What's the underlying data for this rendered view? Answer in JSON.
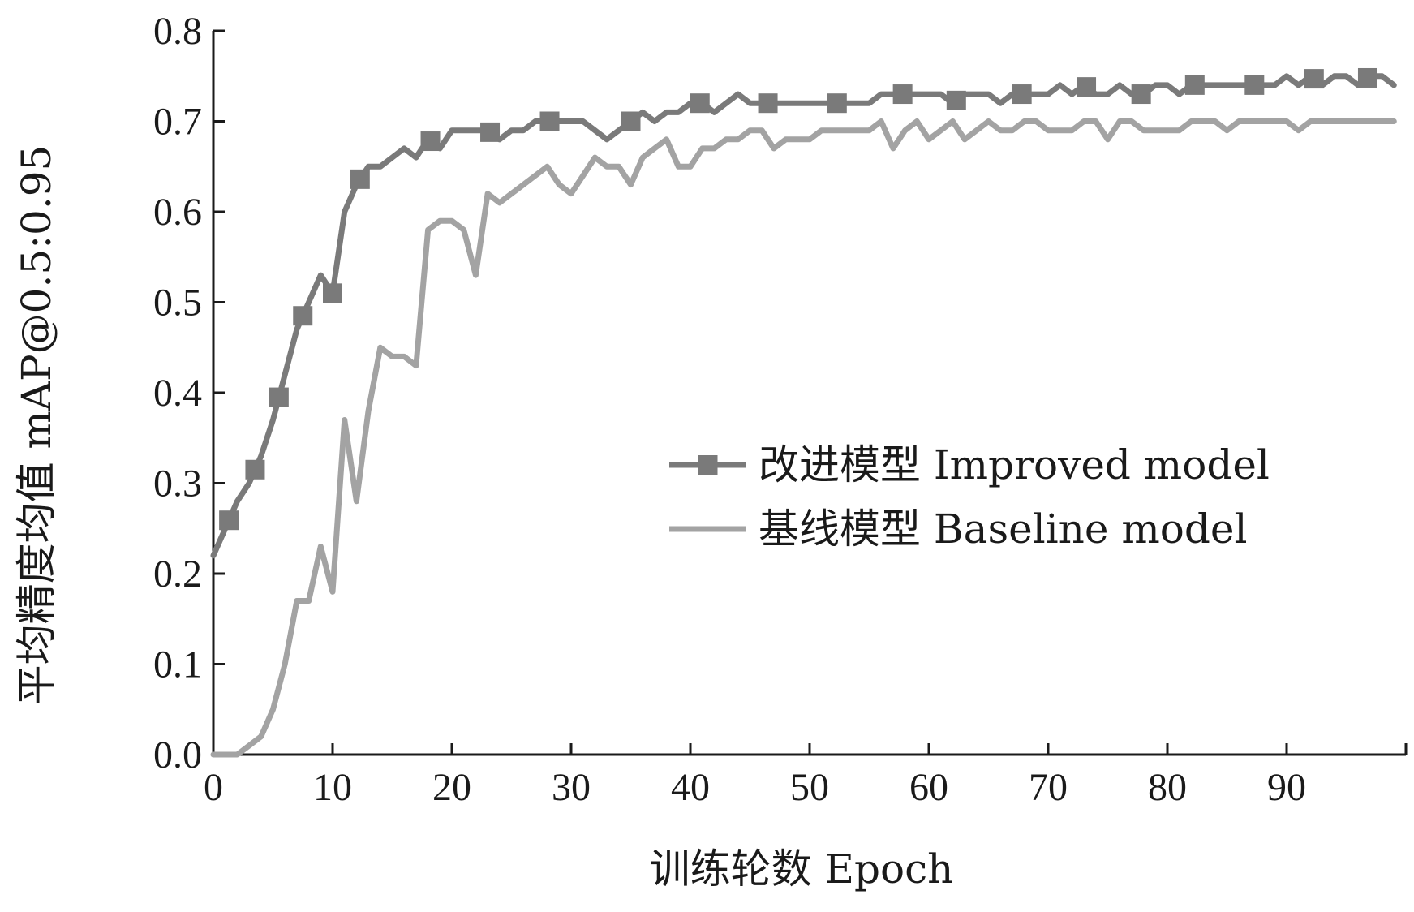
{
  "chart_data": {
    "type": "line",
    "title": "",
    "xlabel": "训练轮数 Epoch",
    "ylabel": "平均精度均值 mAP@0.5:0.95",
    "xlim": [
      0,
      100
    ],
    "ylim": [
      0,
      0.8
    ],
    "xticks": [
      "0",
      "10",
      "20",
      "30",
      "40",
      "50",
      "60",
      "70",
      "80",
      "90"
    ],
    "yticks": [
      "0.0",
      "0.1",
      "0.2",
      "0.3",
      "0.4",
      "0.5",
      "0.6",
      "0.7",
      "0.8"
    ],
    "grid": false,
    "legend_position": "center-right",
    "series": [
      {
        "name": "改进模型 Improved model",
        "color": "#7a7a7a",
        "marker": "square",
        "markers_x": [
          1.3,
          3.5,
          5.5,
          7.5,
          10,
          12.3,
          18.2,
          23.2,
          28.2,
          35,
          40.8,
          46.5,
          52.3,
          57.8,
          62.3,
          67.8,
          73.2,
          77.8,
          82.3,
          87.3,
          92.3,
          96.8
        ],
        "x": [
          0,
          1,
          2,
          3,
          4,
          5,
          6,
          7,
          8,
          9,
          10,
          11,
          12,
          13,
          14,
          15,
          16,
          17,
          18,
          19,
          20,
          21,
          22,
          23,
          24,
          25,
          26,
          27,
          28,
          29,
          30,
          31,
          32,
          33,
          34,
          35,
          36,
          37,
          38,
          39,
          40,
          41,
          42,
          43,
          44,
          45,
          46,
          47,
          48,
          49,
          50,
          51,
          52,
          53,
          54,
          55,
          56,
          57,
          58,
          59,
          60,
          61,
          62,
          63,
          64,
          65,
          66,
          67,
          68,
          69,
          70,
          71,
          72,
          73,
          74,
          75,
          76,
          77,
          78,
          79,
          80,
          81,
          82,
          83,
          84,
          85,
          86,
          87,
          88,
          89,
          90,
          91,
          92,
          93,
          94,
          95,
          96,
          97,
          98,
          99
        ],
        "values": [
          0.22,
          0.25,
          0.28,
          0.3,
          0.33,
          0.37,
          0.42,
          0.47,
          0.5,
          0.53,
          0.51,
          0.6,
          0.63,
          0.65,
          0.65,
          0.66,
          0.67,
          0.66,
          0.68,
          0.67,
          0.69,
          0.69,
          0.69,
          0.69,
          0.68,
          0.69,
          0.69,
          0.7,
          0.7,
          0.7,
          0.7,
          0.7,
          0.69,
          0.68,
          0.69,
          0.7,
          0.71,
          0.7,
          0.71,
          0.71,
          0.72,
          0.72,
          0.71,
          0.72,
          0.73,
          0.72,
          0.72,
          0.72,
          0.72,
          0.72,
          0.72,
          0.72,
          0.72,
          0.72,
          0.72,
          0.72,
          0.73,
          0.73,
          0.73,
          0.73,
          0.73,
          0.73,
          0.72,
          0.73,
          0.73,
          0.73,
          0.72,
          0.73,
          0.73,
          0.73,
          0.73,
          0.74,
          0.73,
          0.74,
          0.73,
          0.73,
          0.74,
          0.73,
          0.73,
          0.74,
          0.74,
          0.73,
          0.74,
          0.74,
          0.74,
          0.74,
          0.74,
          0.74,
          0.74,
          0.74,
          0.75,
          0.74,
          0.75,
          0.74,
          0.75,
          0.75,
          0.74,
          0.75,
          0.75,
          0.74
        ]
      },
      {
        "name": "基线模型 Baseline model",
        "color": "#a3a3a3",
        "marker": "none",
        "x": [
          0,
          1,
          2,
          3,
          4,
          5,
          6,
          7,
          8,
          9,
          10,
          11,
          12,
          13,
          14,
          15,
          16,
          17,
          18,
          19,
          20,
          21,
          22,
          23,
          24,
          25,
          26,
          27,
          28,
          29,
          30,
          31,
          32,
          33,
          34,
          35,
          36,
          37,
          38,
          39,
          40,
          41,
          42,
          43,
          44,
          45,
          46,
          47,
          48,
          49,
          50,
          51,
          52,
          53,
          54,
          55,
          56,
          57,
          58,
          59,
          60,
          61,
          62,
          63,
          64,
          65,
          66,
          67,
          68,
          69,
          70,
          71,
          72,
          73,
          74,
          75,
          76,
          77,
          78,
          79,
          80,
          81,
          82,
          83,
          84,
          85,
          86,
          87,
          88,
          89,
          90,
          91,
          92,
          93,
          94,
          95,
          96,
          97,
          98,
          99
        ],
        "values": [
          0.0,
          0.0,
          0.0,
          0.01,
          0.02,
          0.05,
          0.1,
          0.17,
          0.17,
          0.23,
          0.18,
          0.37,
          0.28,
          0.38,
          0.45,
          0.44,
          0.44,
          0.43,
          0.58,
          0.59,
          0.59,
          0.58,
          0.53,
          0.62,
          0.61,
          0.62,
          0.63,
          0.64,
          0.65,
          0.63,
          0.62,
          0.64,
          0.66,
          0.65,
          0.65,
          0.63,
          0.66,
          0.67,
          0.68,
          0.65,
          0.65,
          0.67,
          0.67,
          0.68,
          0.68,
          0.69,
          0.69,
          0.67,
          0.68,
          0.68,
          0.68,
          0.69,
          0.69,
          0.69,
          0.69,
          0.69,
          0.7,
          0.67,
          0.69,
          0.7,
          0.68,
          0.69,
          0.7,
          0.68,
          0.69,
          0.7,
          0.69,
          0.69,
          0.7,
          0.7,
          0.69,
          0.69,
          0.69,
          0.7,
          0.7,
          0.68,
          0.7,
          0.7,
          0.69,
          0.69,
          0.69,
          0.69,
          0.7,
          0.7,
          0.7,
          0.69,
          0.7,
          0.7,
          0.7,
          0.7,
          0.7,
          0.69,
          0.7,
          0.7,
          0.7,
          0.7,
          0.7,
          0.7,
          0.7,
          0.7
        ]
      }
    ]
  }
}
